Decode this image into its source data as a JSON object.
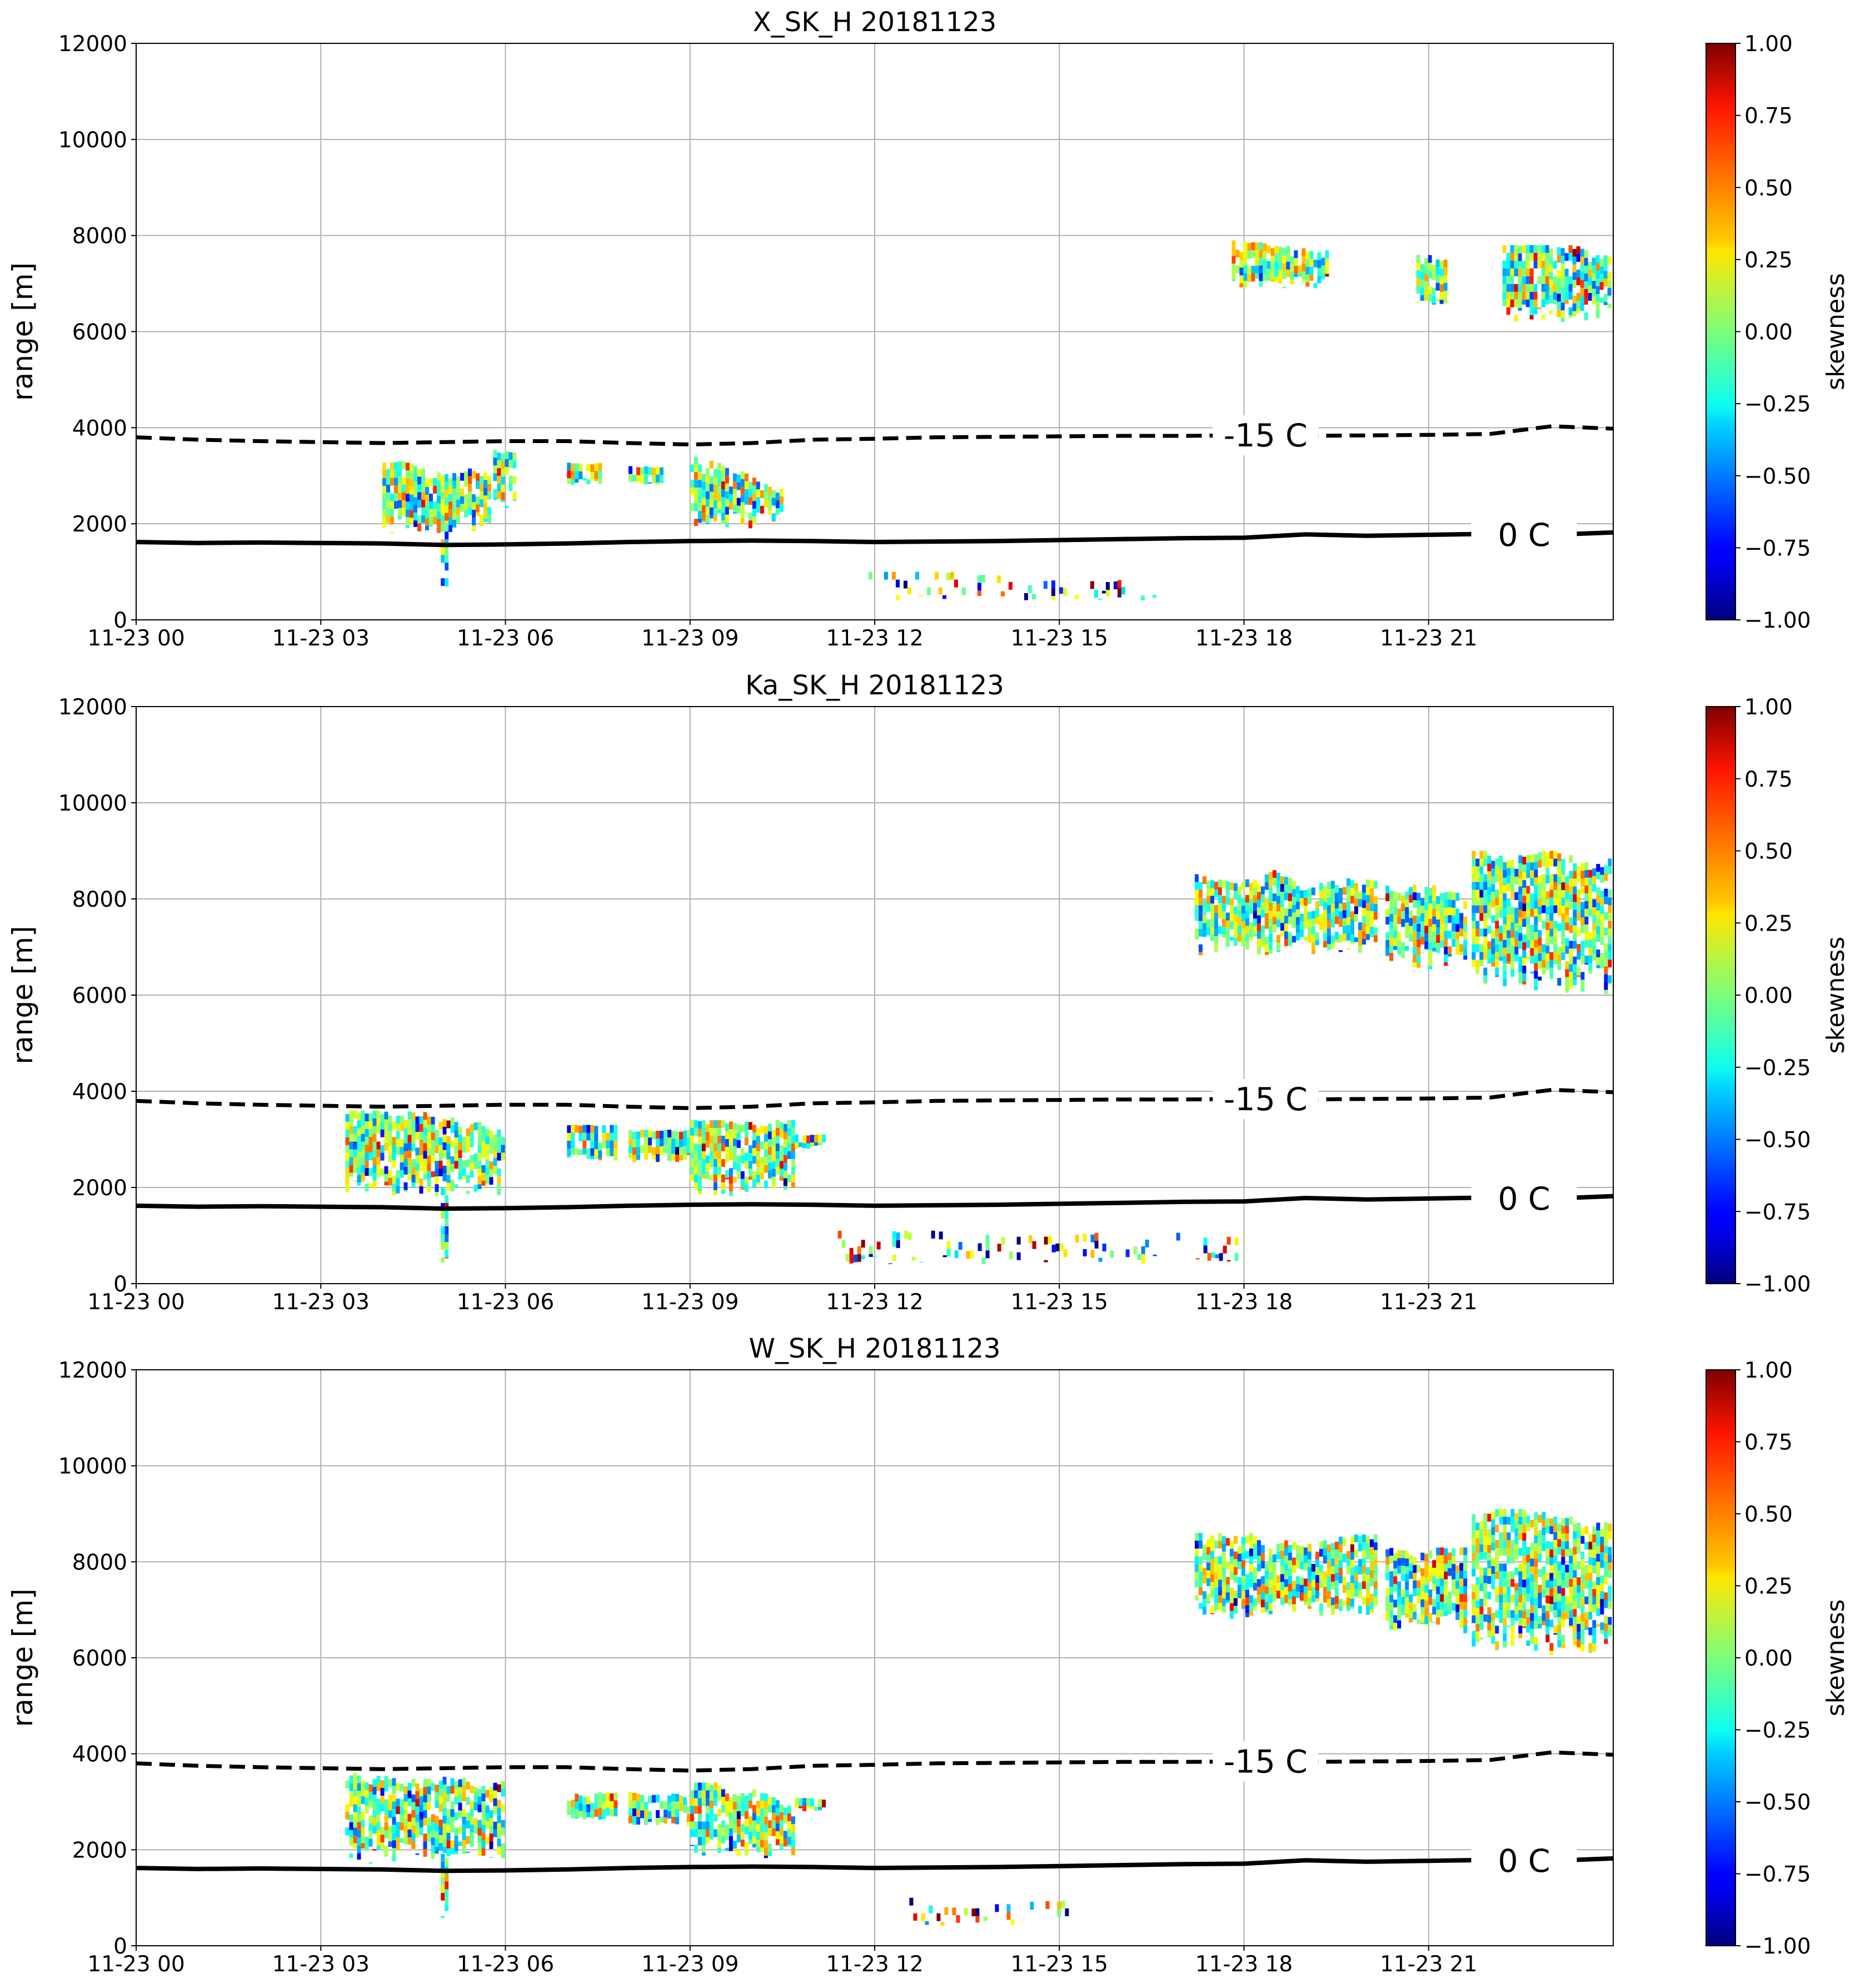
{
  "chart_data": [
    {
      "type": "heatmap",
      "title": "X_SK_H 20181123",
      "ylabel": "range [m]",
      "colorbar_label": "skewness",
      "colormap": "jet",
      "grid": true,
      "xlim": [
        0,
        24
      ],
      "xticks": [
        {
          "value": 0,
          "label": "11-23 00"
        },
        {
          "value": 3,
          "label": "11-23 03"
        },
        {
          "value": 6,
          "label": "11-23 06"
        },
        {
          "value": 9,
          "label": "11-23 09"
        },
        {
          "value": 12,
          "label": "11-23 12"
        },
        {
          "value": 15,
          "label": "11-23 15"
        },
        {
          "value": 18,
          "label": "11-23 18"
        },
        {
          "value": 21,
          "label": "11-23 21"
        }
      ],
      "ylim": [
        0,
        12000
      ],
      "yticks": [
        0,
        2000,
        4000,
        6000,
        8000,
        10000,
        12000
      ],
      "clim": [
        -1,
        1
      ],
      "cticks": [
        {
          "value": 1,
          "label": "1.00"
        },
        {
          "value": 0.75,
          "label": "0.75"
        },
        {
          "value": 0.5,
          "label": "0.50"
        },
        {
          "value": 0.25,
          "label": "0.25"
        },
        {
          "value": 0,
          "label": "0.00"
        },
        {
          "value": -0.25,
          "label": "−0.25"
        },
        {
          "value": -0.5,
          "label": "−0.50"
        },
        {
          "value": -0.75,
          "label": "−0.75"
        },
        {
          "value": -1,
          "label": "−1.00"
        }
      ],
      "echoes": [
        {
          "x": [
            4.0,
            5.8
          ],
          "y": [
            1800,
            3300
          ]
        },
        {
          "x": [
            5.8,
            6.2
          ],
          "y": [
            2300,
            3600
          ]
        },
        {
          "x": [
            4.95,
            5.05
          ],
          "y": [
            400,
            2000
          ]
        },
        {
          "x": [
            7.0,
            7.6
          ],
          "y": [
            2800,
            3300
          ]
        },
        {
          "x": [
            8.0,
            8.6
          ],
          "y": [
            2800,
            3200
          ]
        },
        {
          "x": [
            9.0,
            10.5
          ],
          "y": [
            1900,
            3400
          ]
        },
        {
          "x": [
            17.8,
            19.4
          ],
          "y": [
            6900,
            7900
          ]
        },
        {
          "x": [
            20.8,
            21.3
          ],
          "y": [
            6500,
            7600
          ]
        },
        {
          "x": [
            22.2,
            24
          ],
          "y": [
            6200,
            7800
          ]
        },
        {
          "x": [
            11.9,
            16.6
          ],
          "y": [
            400,
            1000
          ]
        }
      ],
      "series": [
        {
          "name": "-15 C",
          "style": "dashed",
          "color": "#000000",
          "x": [
            0,
            1,
            2,
            3,
            4,
            5,
            6,
            7,
            8,
            9,
            10,
            11,
            12,
            13,
            14,
            15,
            16,
            17,
            18,
            19,
            20,
            21,
            22,
            23,
            24
          ],
          "values": [
            3800,
            3750,
            3720,
            3700,
            3680,
            3700,
            3720,
            3720,
            3680,
            3650,
            3680,
            3750,
            3770,
            3800,
            3810,
            3820,
            3830,
            3830,
            3840,
            3830,
            3840,
            3850,
            3870,
            4030,
            3980
          ]
        },
        {
          "name": "0 C",
          "style": "solid",
          "color": "#000000",
          "x": [
            0,
            1,
            2,
            3,
            4,
            5,
            6,
            7,
            8,
            9,
            10,
            11,
            12,
            13,
            14,
            15,
            16,
            17,
            18,
            19,
            20,
            21,
            22,
            23,
            24
          ],
          "values": [
            1620,
            1600,
            1610,
            1600,
            1590,
            1560,
            1570,
            1590,
            1620,
            1640,
            1650,
            1640,
            1620,
            1630,
            1640,
            1660,
            1680,
            1700,
            1710,
            1780,
            1750,
            1770,
            1790,
            1770,
            1820
          ]
        }
      ]
    },
    {
      "type": "heatmap",
      "title": "Ka_SK_H 20181123",
      "ylabel": "range [m]",
      "colorbar_label": "skewness",
      "colormap": "jet",
      "grid": true,
      "xlim": [
        0,
        24
      ],
      "xticks": [
        {
          "value": 0,
          "label": "11-23 00"
        },
        {
          "value": 3,
          "label": "11-23 03"
        },
        {
          "value": 6,
          "label": "11-23 06"
        },
        {
          "value": 9,
          "label": "11-23 09"
        },
        {
          "value": 12,
          "label": "11-23 12"
        },
        {
          "value": 15,
          "label": "11-23 15"
        },
        {
          "value": 18,
          "label": "11-23 18"
        },
        {
          "value": 21,
          "label": "11-23 21"
        }
      ],
      "ylim": [
        0,
        12000
      ],
      "yticks": [
        0,
        2000,
        4000,
        6000,
        8000,
        10000,
        12000
      ],
      "clim": [
        -1,
        1
      ],
      "cticks": [
        {
          "value": 1,
          "label": "1.00"
        },
        {
          "value": 0.75,
          "label": "0.75"
        },
        {
          "value": 0.5,
          "label": "0.50"
        },
        {
          "value": 0.25,
          "label": "0.25"
        },
        {
          "value": 0,
          "label": "0.00"
        },
        {
          "value": -0.25,
          "label": "−0.25"
        },
        {
          "value": -0.5,
          "label": "−0.50"
        },
        {
          "value": -0.75,
          "label": "−0.75"
        },
        {
          "value": -1,
          "label": "−1.00"
        }
      ],
      "echoes": [
        {
          "x": [
            3.4,
            6.0
          ],
          "y": [
            1800,
            3600
          ]
        },
        {
          "x": [
            4.95,
            5.05
          ],
          "y": [
            400,
            2000
          ]
        },
        {
          "x": [
            7.0,
            7.8
          ],
          "y": [
            2500,
            3300
          ]
        },
        {
          "x": [
            8.0,
            9.0
          ],
          "y": [
            2500,
            3200
          ]
        },
        {
          "x": [
            9.0,
            10.7
          ],
          "y": [
            1800,
            3400
          ]
        },
        {
          "x": [
            10.7,
            11.2
          ],
          "y": [
            2800,
            3100
          ]
        },
        {
          "x": [
            17.2,
            20.2
          ],
          "y": [
            6800,
            8600
          ]
        },
        {
          "x": [
            20.3,
            21.6
          ],
          "y": [
            6500,
            8300
          ]
        },
        {
          "x": [
            21.7,
            24
          ],
          "y": [
            6000,
            9000
          ]
        },
        {
          "x": [
            11.4,
            18
          ],
          "y": [
            400,
            1100
          ]
        }
      ],
      "series": [
        {
          "name": "-15 C",
          "style": "dashed",
          "color": "#000000",
          "x": [
            0,
            1,
            2,
            3,
            4,
            5,
            6,
            7,
            8,
            9,
            10,
            11,
            12,
            13,
            14,
            15,
            16,
            17,
            18,
            19,
            20,
            21,
            22,
            23,
            24
          ],
          "values": [
            3800,
            3750,
            3720,
            3700,
            3680,
            3700,
            3720,
            3720,
            3680,
            3650,
            3680,
            3750,
            3770,
            3800,
            3810,
            3820,
            3830,
            3830,
            3840,
            3830,
            3840,
            3850,
            3870,
            4030,
            3980
          ]
        },
        {
          "name": "0 C",
          "style": "solid",
          "color": "#000000",
          "x": [
            0,
            1,
            2,
            3,
            4,
            5,
            6,
            7,
            8,
            9,
            10,
            11,
            12,
            13,
            14,
            15,
            16,
            17,
            18,
            19,
            20,
            21,
            22,
            23,
            24
          ],
          "values": [
            1620,
            1600,
            1610,
            1600,
            1590,
            1560,
            1570,
            1590,
            1620,
            1640,
            1650,
            1640,
            1620,
            1630,
            1640,
            1660,
            1680,
            1700,
            1710,
            1780,
            1750,
            1770,
            1790,
            1770,
            1820
          ]
        }
      ]
    },
    {
      "type": "heatmap",
      "title": "W_SK_H 20181123",
      "ylabel": "range [m]",
      "colorbar_label": "skewness",
      "colormap": "jet",
      "grid": true,
      "xlim": [
        0,
        24
      ],
      "xticks": [
        {
          "value": 0,
          "label": "11-23 00"
        },
        {
          "value": 3,
          "label": "11-23 03"
        },
        {
          "value": 6,
          "label": "11-23 06"
        },
        {
          "value": 9,
          "label": "11-23 09"
        },
        {
          "value": 12,
          "label": "11-23 12"
        },
        {
          "value": 15,
          "label": "11-23 15"
        },
        {
          "value": 18,
          "label": "11-23 18"
        },
        {
          "value": 21,
          "label": "11-23 21"
        }
      ],
      "ylim": [
        0,
        12000
      ],
      "yticks": [
        0,
        2000,
        4000,
        6000,
        8000,
        10000,
        12000
      ],
      "clim": [
        -1,
        1
      ],
      "cticks": [
        {
          "value": 1,
          "label": "1.00"
        },
        {
          "value": 0.75,
          "label": "0.75"
        },
        {
          "value": 0.5,
          "label": "0.50"
        },
        {
          "value": 0.25,
          "label": "0.25"
        },
        {
          "value": 0,
          "label": "0.00"
        },
        {
          "value": -0.25,
          "label": "−0.25"
        },
        {
          "value": -0.5,
          "label": "−0.50"
        },
        {
          "value": -0.75,
          "label": "−0.75"
        },
        {
          "value": -1,
          "label": "−1.00"
        }
      ],
      "echoes": [
        {
          "x": [
            3.4,
            6.0
          ],
          "y": [
            1700,
            3600
          ]
        },
        {
          "x": [
            4.95,
            5.05
          ],
          "y": [
            400,
            2000
          ]
        },
        {
          "x": [
            7.0,
            7.8
          ],
          "y": [
            2600,
            3200
          ]
        },
        {
          "x": [
            8.0,
            9.0
          ],
          "y": [
            2500,
            3200
          ]
        },
        {
          "x": [
            9.0,
            10.7
          ],
          "y": [
            1800,
            3400
          ]
        },
        {
          "x": [
            10.7,
            11.2
          ],
          "y": [
            2800,
            3100
          ]
        },
        {
          "x": [
            17.2,
            20.2
          ],
          "y": [
            6800,
            8600
          ]
        },
        {
          "x": [
            20.3,
            21.6
          ],
          "y": [
            6500,
            8300
          ]
        },
        {
          "x": [
            21.7,
            24
          ],
          "y": [
            6000,
            9100
          ]
        },
        {
          "x": [
            12.5,
            15.2
          ],
          "y": [
            400,
            1000
          ]
        }
      ],
      "series": [
        {
          "name": "-15 C",
          "style": "dashed",
          "color": "#000000",
          "x": [
            0,
            1,
            2,
            3,
            4,
            5,
            6,
            7,
            8,
            9,
            10,
            11,
            12,
            13,
            14,
            15,
            16,
            17,
            18,
            19,
            20,
            21,
            22,
            23,
            24
          ],
          "values": [
            3800,
            3750,
            3720,
            3700,
            3680,
            3700,
            3720,
            3720,
            3680,
            3650,
            3680,
            3750,
            3770,
            3800,
            3810,
            3820,
            3830,
            3830,
            3840,
            3830,
            3840,
            3850,
            3870,
            4030,
            3980
          ]
        },
        {
          "name": "0 C",
          "style": "solid",
          "color": "#000000",
          "x": [
            0,
            1,
            2,
            3,
            4,
            5,
            6,
            7,
            8,
            9,
            10,
            11,
            12,
            13,
            14,
            15,
            16,
            17,
            18,
            19,
            20,
            21,
            22,
            23,
            24
          ],
          "values": [
            1620,
            1600,
            1610,
            1600,
            1590,
            1560,
            1570,
            1590,
            1620,
            1640,
            1650,
            1640,
            1620,
            1630,
            1640,
            1660,
            1680,
            1700,
            1710,
            1780,
            1750,
            1770,
            1790,
            1770,
            1820
          ]
        }
      ]
    }
  ]
}
